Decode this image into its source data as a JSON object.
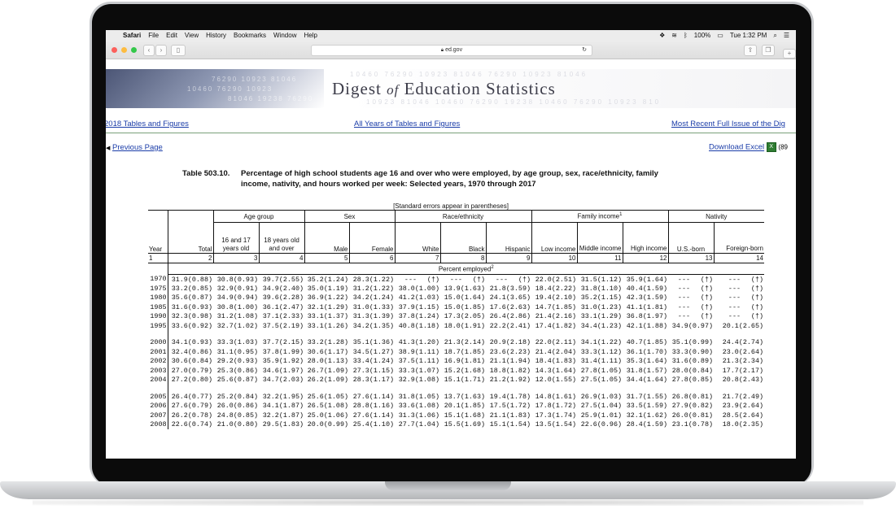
{
  "menubar": {
    "app": "Safari",
    "items": [
      "File",
      "Edit",
      "View",
      "History",
      "Bookmarks",
      "Window",
      "Help"
    ],
    "battery": "100%",
    "clock": "Tue 1:32 PM"
  },
  "toolbar": {
    "url": "ed.gov"
  },
  "banner": {
    "title_a": "Digest ",
    "title_of": "of",
    "title_b": " Education Statistics"
  },
  "nav": {
    "link1": "2018 Tables and Figures",
    "link2": "All Years of Tables and Figures",
    "link3": "Most Recent Full Issue of the Dig",
    "prev": "Previous Page",
    "download": "Download Excel",
    "download_size": "(89"
  },
  "table": {
    "number": "Table 503.10.",
    "title_line1": "Percentage of high school students age 16 and over who were employed, by age group, sex, race/ethnicity, family",
    "title_line2": "income, nativity, and hours worked per week: Selected years, 1970 through 2017",
    "std_note": "[Standard errors appear in parentheses]",
    "groups": {
      "age": "Age group",
      "sex": "Sex",
      "race": "Race/ethnicity",
      "income": "Family income",
      "income_sup": "1",
      "nativity": "Nativity"
    },
    "cols": {
      "year": "Year",
      "total": "Total",
      "age1": "16 and 17 years old",
      "age2": "18 years old and over",
      "male": "Male",
      "female": "Female",
      "white": "White",
      "black": "Black",
      "hispanic": "Hispanic",
      "low": "Low income",
      "middle": "Middle income",
      "high": "High income",
      "usborn": "U.S.-born",
      "foreign": "Foreign-born"
    },
    "colnums": [
      "1",
      "2",
      "3",
      "4",
      "5",
      "6",
      "7",
      "8",
      "9",
      "10",
      "11",
      "12",
      "13",
      "14"
    ],
    "section": "Percent employed",
    "section_sup": "2",
    "rows": [
      [
        "1970",
        "31.9",
        "(0.88)",
        "30.8",
        "(0.93)",
        "39.7",
        "(2.55)",
        "35.2",
        "(1.24)",
        "28.3",
        "(1.22)",
        "---",
        "(†)",
        "---",
        "(†)",
        "---",
        "(†)",
        "22.0",
        "(2.51)",
        "31.5",
        "(1.12)",
        "35.9",
        "(1.64)",
        "---",
        "(†)",
        "---",
        "(†)"
      ],
      [
        "1975",
        "33.2",
        "(0.85)",
        "32.9",
        "(0.91)",
        "34.9",
        "(2.40)",
        "35.0",
        "(1.19)",
        "31.2",
        "(1.22)",
        "38.0",
        "(1.00)",
        "13.9",
        "(1.63)",
        "21.8",
        "(3.59)",
        "18.4",
        "(2.22)",
        "31.8",
        "(1.10)",
        "40.4",
        "(1.59)",
        "---",
        "(†)",
        "---",
        "(†)"
      ],
      [
        "1980",
        "35.6",
        "(0.87)",
        "34.9",
        "(0.94)",
        "39.6",
        "(2.28)",
        "36.9",
        "(1.22)",
        "34.2",
        "(1.24)",
        "41.2",
        "(1.03)",
        "15.0",
        "(1.64)",
        "24.1",
        "(3.65)",
        "19.4",
        "(2.10)",
        "35.2",
        "(1.15)",
        "42.3",
        "(1.59)",
        "---",
        "(†)",
        "---",
        "(†)"
      ],
      [
        "1985",
        "31.6",
        "(0.93)",
        "30.8",
        "(1.00)",
        "36.1",
        "(2.47)",
        "32.1",
        "(1.29)",
        "31.0",
        "(1.33)",
        "37.9",
        "(1.15)",
        "15.0",
        "(1.85)",
        "17.6",
        "(2.63)",
        "14.7",
        "(1.85)",
        "31.0",
        "(1.23)",
        "41.1",
        "(1.81)",
        "---",
        "(†)",
        "---",
        "(†)"
      ],
      [
        "1990",
        "32.3",
        "(0.98)",
        "31.2",
        "(1.08)",
        "37.1",
        "(2.33)",
        "33.1",
        "(1.37)",
        "31.3",
        "(1.39)",
        "37.8",
        "(1.24)",
        "17.3",
        "(2.05)",
        "26.4",
        "(2.86)",
        "21.4",
        "(2.16)",
        "33.1",
        "(1.29)",
        "36.8",
        "(1.97)",
        "---",
        "(†)",
        "---",
        "(†)"
      ],
      [
        "1995",
        "33.6",
        "(0.92)",
        "32.7",
        "(1.02)",
        "37.5",
        "(2.19)",
        "33.1",
        "(1.26)",
        "34.2",
        "(1.35)",
        "40.8",
        "(1.18)",
        "18.0",
        "(1.91)",
        "22.2",
        "(2.41)",
        "17.4",
        "(1.82)",
        "34.4",
        "(1.23)",
        "42.1",
        "(1.88)",
        "34.9",
        "(0.97)",
        "20.1",
        "(2.65)"
      ],
      [],
      [
        "2000",
        "34.1",
        "(0.93)",
        "33.3",
        "(1.03)",
        "37.7",
        "(2.15)",
        "33.2",
        "(1.28)",
        "35.1",
        "(1.36)",
        "41.3",
        "(1.20)",
        "21.3",
        "(2.14)",
        "20.9",
        "(2.18)",
        "22.0",
        "(2.11)",
        "34.1",
        "(1.22)",
        "40.7",
        "(1.85)",
        "35.1",
        "(0.99)",
        "24.4",
        "(2.74)"
      ],
      [
        "2001",
        "32.4",
        "(0.86)",
        "31.1",
        "(0.95)",
        "37.8",
        "(1.99)",
        "30.6",
        "(1.17)",
        "34.5",
        "(1.27)",
        "38.9",
        "(1.11)",
        "18.7",
        "(1.85)",
        "23.6",
        "(2.23)",
        "21.4",
        "(2.04)",
        "33.3",
        "(1.12)",
        "36.1",
        "(1.70)",
        "33.3",
        "(0.90)",
        "23.0",
        "(2.64)"
      ],
      [
        "2002",
        "30.6",
        "(0.84)",
        "29.2",
        "(0.93)",
        "35.9",
        "(1.92)",
        "28.0",
        "(1.13)",
        "33.4",
        "(1.24)",
        "37.5",
        "(1.11)",
        "16.9",
        "(1.81)",
        "21.1",
        "(1.94)",
        "18.4",
        "(1.83)",
        "31.4",
        "(1.11)",
        "35.3",
        "(1.64)",
        "31.6",
        "(0.89)",
        "21.3",
        "(2.34)"
      ],
      [
        "2003",
        "27.0",
        "(0.79)",
        "25.3",
        "(0.86)",
        "34.6",
        "(1.97)",
        "26.7",
        "(1.09)",
        "27.3",
        "(1.15)",
        "33.3",
        "(1.07)",
        "15.2",
        "(1.68)",
        "18.8",
        "(1.82)",
        "14.3",
        "(1.64)",
        "27.8",
        "(1.05)",
        "31.8",
        "(1.57)",
        "28.0",
        "(0.84)",
        "17.7",
        "(2.17)"
      ],
      [
        "2004",
        "27.2",
        "(0.80)",
        "25.6",
        "(0.87)",
        "34.7",
        "(2.03)",
        "26.2",
        "(1.09)",
        "28.3",
        "(1.17)",
        "32.9",
        "(1.08)",
        "15.1",
        "(1.71)",
        "21.2",
        "(1.92)",
        "12.0",
        "(1.55)",
        "27.5",
        "(1.05)",
        "34.4",
        "(1.64)",
        "27.8",
        "(0.85)",
        "20.8",
        "(2.43)"
      ],
      [],
      [
        "2005",
        "26.4",
        "(0.77)",
        "25.2",
        "(0.84)",
        "32.2",
        "(1.95)",
        "25.6",
        "(1.05)",
        "27.6",
        "(1.14)",
        "31.8",
        "(1.05)",
        "13.7",
        "(1.63)",
        "19.4",
        "(1.78)",
        "14.8",
        "(1.61)",
        "26.9",
        "(1.03)",
        "31.7",
        "(1.55)",
        "26.8",
        "(0.81)",
        "21.7",
        "(2.49)"
      ],
      [
        "2006",
        "27.6",
        "(0.79)",
        "26.0",
        "(0.86)",
        "34.1",
        "(1.87)",
        "26.5",
        "(1.08)",
        "28.8",
        "(1.16)",
        "33.6",
        "(1.08)",
        "20.1",
        "(1.85)",
        "17.5",
        "(1.72)",
        "17.8",
        "(1.72)",
        "27.5",
        "(1.04)",
        "33.5",
        "(1.59)",
        "27.9",
        "(0.82)",
        "23.9",
        "(2.64)"
      ],
      [
        "2007",
        "26.2",
        "(0.78)",
        "24.8",
        "(0.85)",
        "32.2",
        "(1.87)",
        "25.0",
        "(1.06)",
        "27.6",
        "(1.14)",
        "31.3",
        "(1.06)",
        "15.1",
        "(1.68)",
        "21.1",
        "(1.83)",
        "17.3",
        "(1.74)",
        "25.9",
        "(1.01)",
        "32.1",
        "(1.62)",
        "26.0",
        "(0.81)",
        "28.5",
        "(2.64)"
      ],
      [
        "2008",
        "22.6",
        "(0.74)",
        "21.0",
        "(0.80)",
        "29.5",
        "(1.83)",
        "20.0",
        "(0.99)",
        "25.4",
        "(1.10)",
        "27.7",
        "(1.04)",
        "15.5",
        "(1.69)",
        "15.1",
        "(1.54)",
        "13.5",
        "(1.54)",
        "22.6",
        "(0.96)",
        "28.4",
        "(1.59)",
        "23.1",
        "(0.78)",
        "18.0",
        "(2.35)"
      ]
    ]
  }
}
